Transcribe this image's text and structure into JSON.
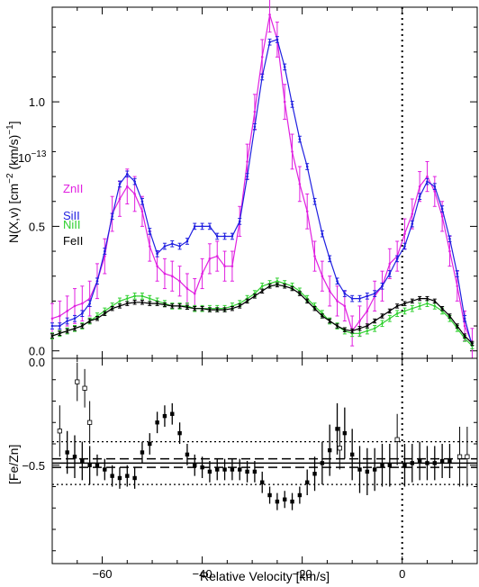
{
  "chart_data": [
    {
      "type": "line",
      "panel": "top",
      "ylabel_text": "N(X,v) [cm",
      "ylabel_exp1": "−2",
      "ylabel_mid": " (km/s)",
      "ylabel_exp2": "−1",
      "ylabel_close": "]",
      "scale_label": "10",
      "scale_exp": "−13",
      "xlim": [
        -70,
        15
      ],
      "ylim": [
        -0.03,
        1.38
      ],
      "yticks": [
        0.0,
        0.5,
        1.0
      ],
      "ytick_labels": [
        "0.0",
        "0.5",
        "1.0"
      ],
      "marker_line_x": 0,
      "series": [
        {
          "name": "ZnII",
          "color": "#e020e0",
          "x": [
            -70,
            -68.5,
            -67,
            -65.5,
            -64,
            -62.5,
            -61,
            -59.5,
            -58,
            -56.5,
            -55,
            -53.5,
            -52,
            -50.5,
            -49,
            -47.5,
            -46,
            -44.5,
            -43,
            -41.5,
            -40,
            -38.5,
            -37,
            -35.5,
            -34,
            -32.5,
            -31,
            -29.5,
            -28,
            -26.5,
            -25,
            -23.5,
            -22,
            -20.5,
            -19,
            -17.5,
            -16,
            -14.5,
            -13,
            -11.5,
            -10,
            -8.5,
            -7,
            -5.5,
            -4,
            -2.5,
            -1,
            0.5,
            2,
            3.5,
            5,
            6.5,
            8,
            9.5,
            11,
            12.5,
            14
          ],
          "y": [
            0.13,
            0.14,
            0.16,
            0.18,
            0.19,
            0.21,
            0.28,
            0.38,
            0.55,
            0.61,
            0.66,
            0.63,
            0.56,
            0.42,
            0.34,
            0.31,
            0.3,
            0.28,
            0.25,
            0.23,
            0.31,
            0.37,
            0.38,
            0.34,
            0.34,
            0.52,
            0.76,
            0.96,
            1.18,
            1.35,
            1.25,
            1.0,
            0.8,
            0.67,
            0.56,
            0.38,
            0.3,
            0.24,
            0.2,
            0.18,
            0.08,
            0.12,
            0.16,
            0.22,
            0.26,
            0.35,
            0.38,
            0.47,
            0.55,
            0.66,
            0.7,
            0.64,
            0.54,
            0.4,
            0.26,
            0.1,
            0.03
          ],
          "err": [
            0.06,
            0.06,
            0.06,
            0.07,
            0.07,
            0.07,
            0.07,
            0.07,
            0.07,
            0.07,
            0.07,
            0.07,
            0.06,
            0.06,
            0.06,
            0.06,
            0.06,
            0.06,
            0.06,
            0.06,
            0.06,
            0.06,
            0.06,
            0.06,
            0.06,
            0.06,
            0.07,
            0.07,
            0.07,
            0.07,
            0.07,
            0.07,
            0.07,
            0.07,
            0.07,
            0.06,
            0.06,
            0.06,
            0.06,
            0.06,
            0.06,
            0.06,
            0.06,
            0.06,
            0.06,
            0.06,
            0.06,
            0.06,
            0.06,
            0.06,
            0.06,
            0.06,
            0.06,
            0.06,
            0.06,
            0.06,
            0.06
          ]
        },
        {
          "name": "SiII",
          "color": "#1f1fe0",
          "x": [
            -70,
            -68.5,
            -67,
            -65.5,
            -64,
            -62.5,
            -61,
            -59.5,
            -58,
            -56.5,
            -55,
            -53.5,
            -52,
            -50.5,
            -49,
            -47.5,
            -46,
            -44.5,
            -43,
            -41.5,
            -40,
            -38.5,
            -37,
            -35.5,
            -34,
            -32.5,
            -31,
            -29.5,
            -28,
            -26.5,
            -25,
            -23.5,
            -22,
            -20.5,
            -19,
            -17.5,
            -16,
            -14.5,
            -13,
            -11.5,
            -10,
            -8.5,
            -7,
            -5.5,
            -4,
            -2.5,
            -1,
            0.5,
            2,
            3.5,
            5,
            6.5,
            8,
            9.5,
            11,
            12.5,
            14
          ],
          "y": [
            0.1,
            0.1,
            0.12,
            0.13,
            0.15,
            0.19,
            0.28,
            0.4,
            0.54,
            0.67,
            0.71,
            0.68,
            0.6,
            0.48,
            0.39,
            0.42,
            0.43,
            0.42,
            0.44,
            0.5,
            0.5,
            0.5,
            0.46,
            0.46,
            0.46,
            0.52,
            0.7,
            0.9,
            1.1,
            1.24,
            1.25,
            1.14,
            0.99,
            0.85,
            0.74,
            0.6,
            0.47,
            0.37,
            0.28,
            0.23,
            0.21,
            0.21,
            0.22,
            0.23,
            0.26,
            0.31,
            0.37,
            0.42,
            0.51,
            0.62,
            0.68,
            0.66,
            0.57,
            0.45,
            0.31,
            0.13,
            0.02
          ],
          "err": [
            0.012,
            0.012,
            0.012,
            0.012,
            0.012,
            0.012,
            0.012,
            0.012,
            0.012,
            0.012,
            0.012,
            0.012,
            0.012,
            0.012,
            0.012,
            0.012,
            0.012,
            0.012,
            0.012,
            0.012,
            0.012,
            0.012,
            0.012,
            0.012,
            0.012,
            0.012,
            0.012,
            0.012,
            0.012,
            0.012,
            0.012,
            0.012,
            0.012,
            0.012,
            0.012,
            0.012,
            0.012,
            0.012,
            0.012,
            0.012,
            0.012,
            0.012,
            0.012,
            0.012,
            0.012,
            0.012,
            0.012,
            0.012,
            0.012,
            0.012,
            0.012,
            0.012,
            0.012,
            0.012,
            0.012,
            0.012,
            0.012
          ]
        },
        {
          "name": "NiII",
          "color": "#30d030",
          "x": [
            -70,
            -68.5,
            -67,
            -65.5,
            -64,
            -62.5,
            -61,
            -59.5,
            -58,
            -56.5,
            -55,
            -53.5,
            -52,
            -50.5,
            -49,
            -47.5,
            -46,
            -44.5,
            -43,
            -41.5,
            -40,
            -38.5,
            -37,
            -35.5,
            -34,
            -32.5,
            -31,
            -29.5,
            -28,
            -26.5,
            -25,
            -23.5,
            -22,
            -20.5,
            -19,
            -17.5,
            -16,
            -14.5,
            -13,
            -11.5,
            -10,
            -8.5,
            -7,
            -5.5,
            -4,
            -2.5,
            -1,
            0.5,
            2,
            3.5,
            5,
            6.5,
            8,
            9.5,
            11,
            12.5,
            14
          ],
          "y": [
            0.06,
            0.07,
            0.08,
            0.09,
            0.1,
            0.12,
            0.14,
            0.16,
            0.18,
            0.2,
            0.21,
            0.22,
            0.22,
            0.21,
            0.2,
            0.19,
            0.18,
            0.18,
            0.18,
            0.17,
            0.17,
            0.17,
            0.17,
            0.17,
            0.18,
            0.19,
            0.21,
            0.23,
            0.26,
            0.27,
            0.28,
            0.27,
            0.26,
            0.24,
            0.21,
            0.18,
            0.15,
            0.12,
            0.1,
            0.08,
            0.07,
            0.07,
            0.08,
            0.09,
            0.11,
            0.13,
            0.15,
            0.16,
            0.17,
            0.18,
            0.19,
            0.18,
            0.16,
            0.13,
            0.09,
            0.05,
            0.02
          ],
          "err": [
            0.012,
            0.012,
            0.012,
            0.012,
            0.012,
            0.012,
            0.012,
            0.012,
            0.012,
            0.012,
            0.012,
            0.012,
            0.012,
            0.012,
            0.012,
            0.012,
            0.012,
            0.012,
            0.012,
            0.012,
            0.012,
            0.012,
            0.012,
            0.012,
            0.012,
            0.012,
            0.012,
            0.012,
            0.012,
            0.012,
            0.012,
            0.012,
            0.012,
            0.012,
            0.012,
            0.012,
            0.012,
            0.012,
            0.012,
            0.012,
            0.012,
            0.012,
            0.012,
            0.012,
            0.012,
            0.012,
            0.012,
            0.012,
            0.012,
            0.012,
            0.012,
            0.012,
            0.012,
            0.012,
            0.012,
            0.012,
            0.012
          ]
        },
        {
          "name": "FeII",
          "color": "#000000",
          "x": [
            -70,
            -68.5,
            -67,
            -65.5,
            -64,
            -62.5,
            -61,
            -59.5,
            -58,
            -56.5,
            -55,
            -53.5,
            -52,
            -50.5,
            -49,
            -47.5,
            -46,
            -44.5,
            -43,
            -41.5,
            -40,
            -38.5,
            -37,
            -35.5,
            -34,
            -32.5,
            -31,
            -29.5,
            -28,
            -26.5,
            -25,
            -23.5,
            -22,
            -20.5,
            -19,
            -17.5,
            -16,
            -14.5,
            -13,
            -11.5,
            -10,
            -8.5,
            -7,
            -5.5,
            -4,
            -2.5,
            -1,
            0.5,
            2,
            3.5,
            5,
            6.5,
            8,
            9.5,
            11,
            12.5,
            14
          ],
          "y": [
            0.06,
            0.07,
            0.08,
            0.09,
            0.1,
            0.12,
            0.13,
            0.15,
            0.17,
            0.18,
            0.19,
            0.195,
            0.195,
            0.19,
            0.19,
            0.185,
            0.18,
            0.18,
            0.175,
            0.17,
            0.17,
            0.165,
            0.165,
            0.165,
            0.17,
            0.18,
            0.2,
            0.22,
            0.24,
            0.26,
            0.265,
            0.26,
            0.25,
            0.23,
            0.2,
            0.17,
            0.14,
            0.12,
            0.1,
            0.085,
            0.08,
            0.09,
            0.1,
            0.12,
            0.14,
            0.16,
            0.18,
            0.19,
            0.2,
            0.21,
            0.21,
            0.2,
            0.17,
            0.14,
            0.1,
            0.06,
            0.03
          ],
          "err": [
            0.008,
            0.008,
            0.008,
            0.008,
            0.008,
            0.008,
            0.008,
            0.008,
            0.008,
            0.008,
            0.008,
            0.008,
            0.008,
            0.008,
            0.008,
            0.008,
            0.008,
            0.008,
            0.008,
            0.008,
            0.008,
            0.008,
            0.008,
            0.008,
            0.008,
            0.008,
            0.008,
            0.008,
            0.008,
            0.008,
            0.008,
            0.008,
            0.008,
            0.008,
            0.008,
            0.008,
            0.008,
            0.008,
            0.008,
            0.008,
            0.008,
            0.008,
            0.008,
            0.008,
            0.008,
            0.008,
            0.008,
            0.008,
            0.008,
            0.008,
            0.008,
            0.008,
            0.008,
            0.008,
            0.008,
            0.008,
            0.008
          ]
        }
      ]
    },
    {
      "type": "scatter",
      "panel": "bottom",
      "ylabel": "[Fe/Zn]",
      "xlabel": "Relative Velocity [km/s]",
      "xlim": [
        -70,
        15
      ],
      "ylim": [
        -0.96,
        0.0
      ],
      "yticks": [
        0.0,
        -0.5
      ],
      "ytick_labels": [
        "0.0",
        "−0.5"
      ],
      "xticks": [
        -60,
        -40,
        -20,
        0
      ],
      "xtick_labels": [
        "−60",
        "−40",
        "−20",
        "0"
      ],
      "mean_value": -0.49,
      "mean_error_band": [
        -0.47,
        -0.51
      ],
      "dotted_lines": [
        -0.39,
        -0.59
      ],
      "marker_line_x": 0,
      "open_points": {
        "x": [
          -68.5,
          -65,
          -63.5,
          -62.5,
          -12.5,
          -1,
          11.5,
          13
        ],
        "y": [
          -0.34,
          -0.11,
          -0.14,
          -0.3,
          -0.42,
          -0.38,
          -0.46,
          -0.46
        ],
        "err": [
          0.12,
          0.09,
          0.09,
          0.1,
          0.1,
          0.12,
          0.14,
          0.14
        ]
      },
      "filled_points": {
        "x": [
          -67,
          -65.5,
          -64,
          -62.5,
          -61,
          -59.5,
          -58,
          -56.5,
          -55,
          -53.5,
          -52,
          -50.5,
          -49,
          -47.5,
          -46,
          -44.5,
          -43,
          -41.5,
          -40,
          -38.5,
          -37,
          -35.5,
          -34,
          -32.5,
          -31,
          -29.5,
          -28,
          -26.5,
          -25,
          -23.5,
          -22,
          -20.5,
          -19,
          -17.5,
          -16,
          -14.5,
          -13,
          -11.5,
          -10,
          -8.5,
          -7,
          -5.5,
          -4,
          -2.5,
          0.5,
          2,
          3.5,
          5,
          6.5,
          8,
          9.5
        ],
        "y": [
          -0.44,
          -0.46,
          -0.48,
          -0.5,
          -0.5,
          -0.52,
          -0.55,
          -0.56,
          -0.55,
          -0.56,
          -0.44,
          -0.4,
          -0.3,
          -0.27,
          -0.26,
          -0.35,
          -0.45,
          -0.5,
          -0.51,
          -0.53,
          -0.52,
          -0.52,
          -0.52,
          -0.52,
          -0.53,
          -0.53,
          -0.58,
          -0.64,
          -0.67,
          -0.66,
          -0.67,
          -0.64,
          -0.58,
          -0.54,
          -0.49,
          -0.43,
          -0.33,
          -0.35,
          -0.45,
          -0.52,
          -0.53,
          -0.52,
          -0.5,
          -0.5,
          -0.5,
          -0.49,
          -0.48,
          -0.49,
          -0.49,
          -0.48,
          -0.48
        ],
        "err": [
          0.1,
          0.1,
          0.09,
          0.09,
          0.05,
          0.05,
          0.05,
          0.05,
          0.05,
          0.05,
          0.05,
          0.05,
          0.05,
          0.05,
          0.05,
          0.05,
          0.05,
          0.05,
          0.05,
          0.05,
          0.05,
          0.05,
          0.05,
          0.05,
          0.05,
          0.05,
          0.05,
          0.04,
          0.04,
          0.04,
          0.04,
          0.04,
          0.06,
          0.08,
          0.1,
          0.12,
          0.12,
          0.12,
          0.12,
          0.11,
          0.11,
          0.1,
          0.1,
          0.1,
          0.1,
          0.09,
          0.09,
          0.08,
          0.08,
          0.08,
          0.08
        ]
      }
    }
  ]
}
